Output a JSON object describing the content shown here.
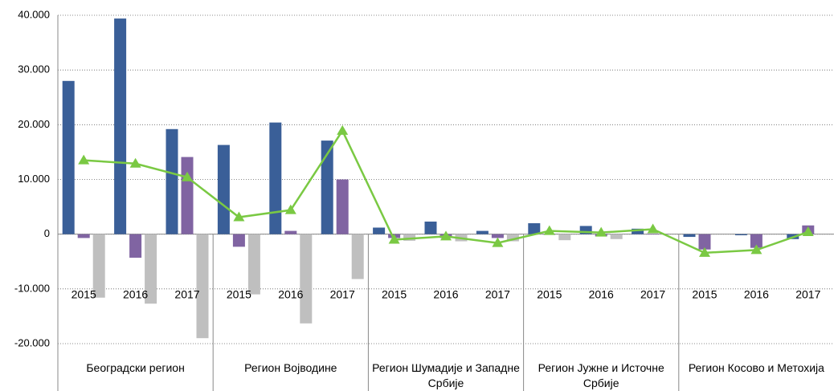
{
  "chart_data": {
    "type": "bar",
    "categories": [
      "2015",
      "2016",
      "2017",
      "2015",
      "2016",
      "2017",
      "2015",
      "2016",
      "2017",
      "2015",
      "2016",
      "2017",
      "2015",
      "2016",
      "2017"
    ],
    "groups": [
      "Београдски регион",
      "Регион Војводине",
      "Регион Шумадије и Западне Србије",
      "Регион Јужне и Источне Србије",
      "Регион Косово и Метохија"
    ],
    "series": [
      {
        "color": "#3a5f98",
        "type": "bar",
        "values": [
          28000,
          39400,
          19200,
          16300,
          20400,
          17100,
          1200,
          2300,
          600,
          2000,
          1500,
          1000,
          -500,
          -200,
          -900
        ]
      },
      {
        "color": "#8064a2",
        "type": "bar",
        "values": [
          -700,
          -4300,
          14100,
          -2300,
          600,
          10000,
          -700,
          -700,
          -700,
          -100,
          -400,
          100,
          -2800,
          -2500,
          1600
        ]
      },
      {
        "color": "#bfbfbf",
        "type": "bar",
        "values": [
          -11600,
          -12700,
          -19000,
          -11000,
          -16300,
          -8200,
          -1200,
          -1300,
          -1300,
          -1100,
          -900,
          0,
          0,
          0,
          0
        ]
      },
      {
        "color": "#7ac943",
        "type": "line",
        "values": [
          13500,
          12900,
          10400,
          3100,
          4400,
          18900,
          -1000,
          -400,
          -1600,
          600,
          300,
          900,
          -3400,
          -2900,
          400
        ]
      }
    ],
    "ylim": [
      -20000,
      40000
    ],
    "yticks": [
      {
        "value": -20000,
        "label": "-20.000"
      },
      {
        "value": -10000,
        "label": "-10.000"
      },
      0,
      {
        "value": 10000,
        "label": "10.000"
      },
      {
        "value": 20000,
        "label": "20.000"
      },
      {
        "value": 30000,
        "label": "30.000"
      },
      {
        "value": 40000,
        "label": "40.000"
      }
    ],
    "grid": true
  }
}
